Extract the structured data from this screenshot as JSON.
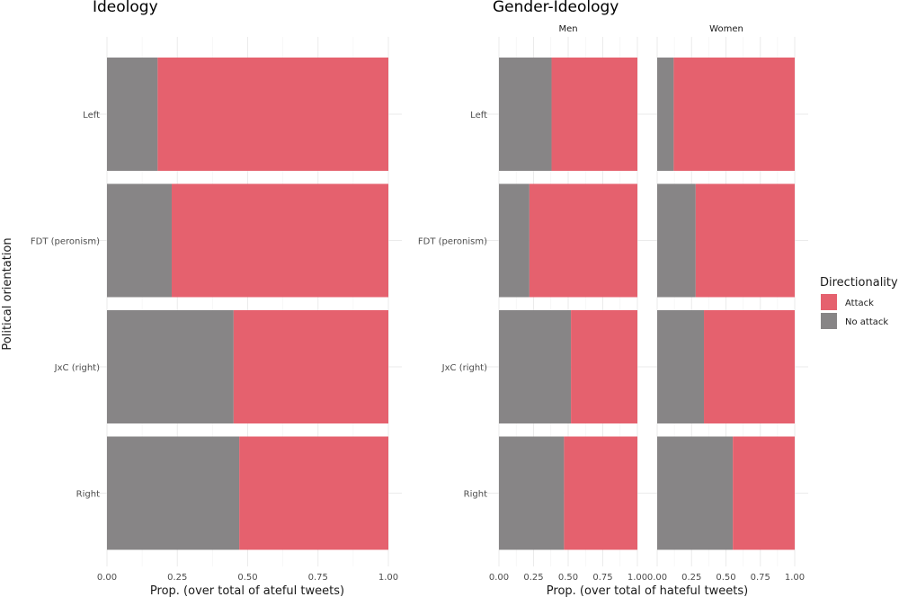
{
  "colors": {
    "attack": "#e5616e",
    "no_attack": "#878586"
  },
  "legend": {
    "title": "Directionality",
    "items": [
      {
        "label": "Attack",
        "color": "#e5616e"
      },
      {
        "label": "No attack",
        "color": "#878586"
      }
    ]
  },
  "shared": {
    "ylabel": "Political orientation",
    "categories": [
      "Left",
      "FDT (peronism)",
      "JxC (right)",
      "Right"
    ]
  },
  "chart_data": [
    {
      "type": "bar",
      "orientation": "horizontal",
      "stacked": true,
      "title": "Ideology",
      "xlabel": "Prop. (over total of ateful tweets)",
      "ylabel": "Political orientation",
      "categories": [
        "Left",
        "FDT (peronism)",
        "JxC (right)",
        "Right"
      ],
      "xlim": [
        0,
        1
      ],
      "xticks": [
        "0.00",
        "0.25",
        "0.50",
        "0.75",
        "1.00"
      ],
      "grid": true,
      "legend": "right",
      "series": [
        {
          "name": "No attack",
          "values": [
            0.18,
            0.23,
            0.45,
            0.47
          ]
        },
        {
          "name": "Attack",
          "values": [
            0.82,
            0.77,
            0.55,
            0.53
          ]
        }
      ]
    },
    {
      "type": "bar",
      "orientation": "horizontal",
      "stacked": true,
      "title": "Gender-Ideology",
      "xlabel": "Prop. (over total of hateful tweets)",
      "categories": [
        "Left",
        "FDT (peronism)",
        "JxC (right)",
        "Right"
      ],
      "xlim": [
        0,
        1
      ],
      "xticks": [
        "0.00",
        "0.25",
        "0.50",
        "0.75",
        "1.00"
      ],
      "grid": true,
      "legend": "right",
      "facets": [
        {
          "label": "Men",
          "series": [
            {
              "name": "No attack",
              "values": [
                0.38,
                0.22,
                0.52,
                0.47
              ]
            },
            {
              "name": "Attack",
              "values": [
                0.62,
                0.78,
                0.48,
                0.53
              ]
            }
          ]
        },
        {
          "label": "Women",
          "series": [
            {
              "name": "No attack",
              "values": [
                0.12,
                0.28,
                0.34,
                0.55
              ]
            },
            {
              "name": "Attack",
              "values": [
                0.88,
                0.72,
                0.66,
                0.45
              ]
            }
          ]
        }
      ]
    }
  ]
}
